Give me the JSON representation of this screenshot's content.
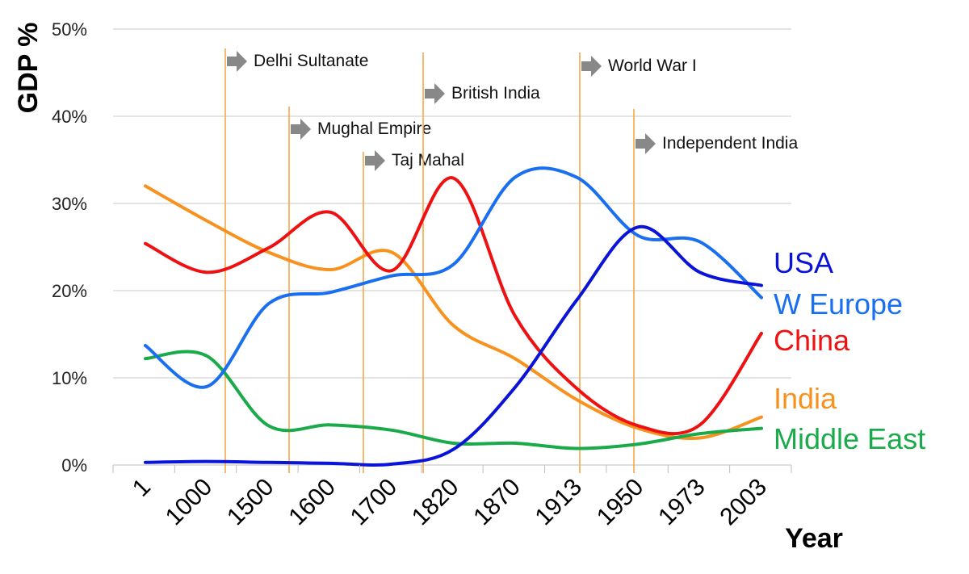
{
  "chart_data": {
    "type": "line",
    "title": "",
    "xlabel": "Year",
    "ylabel": "GDP %",
    "categories": [
      "1",
      "1000",
      "1500",
      "1600",
      "1700",
      "1820",
      "1870",
      "1913",
      "1950",
      "1973",
      "2003"
    ],
    "ylim": [
      0,
      50
    ],
    "yticks": [
      "0%",
      "10%",
      "20%",
      "30%",
      "40%",
      "50%"
    ],
    "grid": true,
    "series": [
      {
        "name": "USA",
        "color": "#0a14d8",
        "values": [
          0.3,
          0.4,
          0.3,
          0.2,
          0.1,
          1.8,
          8.9,
          18.9,
          27.3,
          22.1,
          20.6
        ]
      },
      {
        "name": "W Europe",
        "color": "#1a6ff0",
        "values": [
          13.7,
          9.0,
          18.5,
          19.8,
          21.7,
          23.0,
          33.0,
          33.0,
          26.3,
          25.6,
          19.2
        ]
      },
      {
        "name": "China",
        "color": "#ee1111",
        "values": [
          25.4,
          22.1,
          24.9,
          29.0,
          22.3,
          32.9,
          17.1,
          8.8,
          4.5,
          4.6,
          15.1
        ]
      },
      {
        "name": "India",
        "color": "#f7921e",
        "values": [
          32.0,
          28.0,
          24.4,
          22.4,
          24.4,
          16.0,
          12.2,
          7.5,
          4.2,
          3.1,
          5.5
        ]
      },
      {
        "name": "Middle East",
        "color": "#1aaa4a",
        "values": [
          12.2,
          12.5,
          4.5,
          4.6,
          4.0,
          2.5,
          2.5,
          1.9,
          2.4,
          3.6,
          4.2
        ]
      }
    ],
    "events": [
      {
        "label": "Delhi Sultanate",
        "x_position": 1.4
      },
      {
        "label": "Mughal Empire",
        "x_position": 2.6
      },
      {
        "label": "Taj Mahal",
        "x_position": 3.9
      },
      {
        "label": "British India",
        "x_position": 5.0
      },
      {
        "label": "World War I",
        "x_position": 7.9
      },
      {
        "label": "Independent India",
        "x_position": 8.9
      }
    ],
    "event_line_color": "#f7a649",
    "event_arrow_color": "#888888"
  }
}
